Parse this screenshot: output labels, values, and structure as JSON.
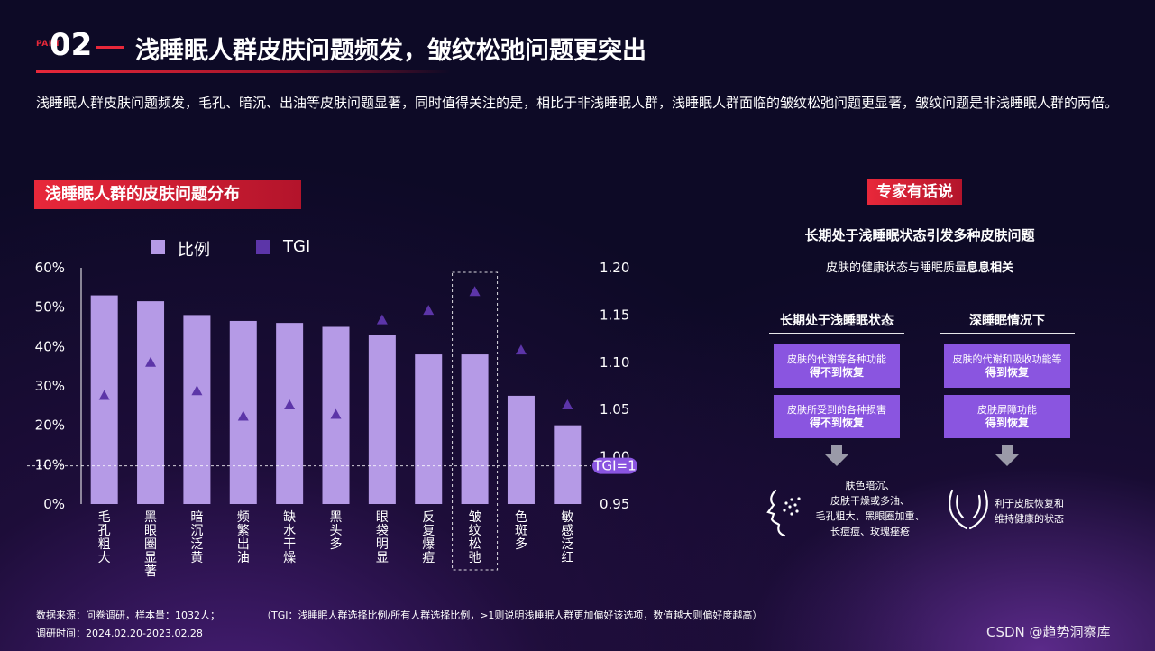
{
  "header": {
    "part_tag": "PART",
    "part_number": "02",
    "title": "浅睡眠人群皮肤问题频发，皱纹松弛问题更突出"
  },
  "intro": "浅睡眠人群皮肤问题频发，毛孔、暗沉、出油等皮肤问题显著，同时值得关注的是，相比于非浅睡眠人群，浅睡眠人群面临的皱纹松弛问题更显著，皱纹问题是非浅睡眠人群的两倍。",
  "chart_section_title": "浅睡眠人群的皮肤问题分布",
  "chart_data": {
    "type": "bar",
    "categories": [
      "毛孔粗大",
      "黑眼圈显著",
      "暗沉泛黄",
      "频繁出油",
      "缺水干燥",
      "黑头多",
      "眼袋明显",
      "反复爆痘",
      "皱纹松弛",
      "色斑多",
      "敏感泛红"
    ],
    "series": [
      {
        "name": "比例",
        "type": "bar",
        "axis": "left",
        "color": "#b59ae6",
        "values": [
          53,
          51.5,
          48,
          46.5,
          46,
          45,
          43,
          38,
          38,
          27.5,
          20
        ]
      },
      {
        "name": "TGI",
        "type": "marker",
        "marker": "triangle",
        "axis": "right",
        "color": "#5c35a8",
        "values": [
          1.065,
          1.1,
          1.07,
          1.043,
          1.055,
          1.045,
          1.145,
          1.155,
          1.175,
          1.113,
          1.055
        ]
      }
    ],
    "y_left": {
      "min": 0,
      "max": 60,
      "ticks": [
        "0%",
        "10%",
        "20%",
        "30%",
        "40%",
        "50%",
        "60%"
      ]
    },
    "y_right": {
      "min": 0.95,
      "max": 1.2,
      "ticks": [
        "0.95",
        "1.00",
        "1.05",
        "1.10",
        "1.15",
        "1.20"
      ]
    },
    "reference_line": {
      "label": "TGI=1",
      "value": 1.0
    },
    "highlight_category": "皱纹松弛",
    "legend_position": "top-left"
  },
  "expert": {
    "title": "专家有话说",
    "headline": "长期处于浅睡眠状态引发多种皮肤问题",
    "subline_pre": "皮肤的健康状态与睡眠质量",
    "subline_bold": "息息相关",
    "left_col": {
      "title": "长期处于浅睡眠状态",
      "box1_text": "皮肤的代谢等各种功能",
      "box1_bold": "得不到恢复",
      "box2_text": "皮肤所受到的各种损害",
      "box2_bold": "得不到恢复",
      "outcome": [
        "肤色暗沉、",
        "皮肤干燥或多油、",
        "毛孔粗大、黑眼圈加重、",
        "长痘痘、玫瑰痤疮"
      ]
    },
    "right_col": {
      "title": "深睡眠情况下",
      "box1_text": "皮肤的代谢和吸收功能等",
      "box1_bold": "得到恢复",
      "box2_text": "皮肤屏障功能",
      "box2_bold": "得到恢复",
      "outcome": [
        "利于皮肤恢复和",
        "维持健康的状态"
      ]
    }
  },
  "footer": {
    "source": "数据来源：问卷调研，样本量：1032人；",
    "tgi_note": "（TGI：浅睡眠人群选择比例/所有人群选择比例，>1则说明浅睡眠人群更加偏好该选项，数值越大则偏好度越高）",
    "survey_time": "调研时间：2024.02.20-2023.02.28",
    "watermark": "CSDN @趋势洞察库"
  },
  "colors": {
    "accent_red": "#e8283a",
    "bar": "#b59ae6",
    "tgi_marker": "#5c35a8",
    "box": "#8a55e0",
    "background": "#0d0a26"
  }
}
